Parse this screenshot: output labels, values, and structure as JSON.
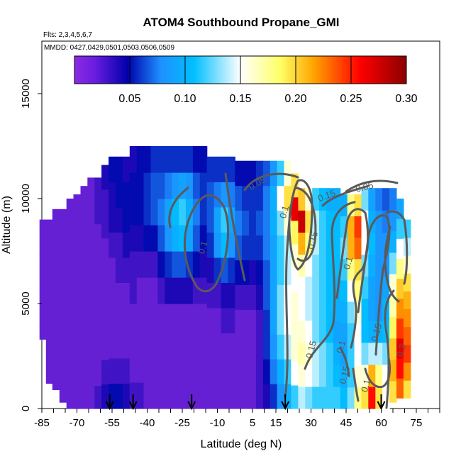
{
  "chart_data": {
    "type": "heatmap",
    "title": "ATOM4 Southbound Propane_GMI",
    "flights_note": "Flts: 2,3,4,5,6,7",
    "dates_note": "MMDD: 0427,0429,0501,0503,0506,0509",
    "xlabel": "Latitude (deg N)",
    "ylabel": "Altitude (m)",
    "xlim": [
      -85,
      85
    ],
    "ylim": [
      0,
      17500
    ],
    "x_tick_labels": [
      "-85",
      "-70",
      "-55",
      "-40",
      "-25",
      "-10",
      "5",
      "15",
      "30",
      "45",
      "60",
      "75"
    ],
    "y_tick_labels": [
      "0",
      "5000",
      "10000",
      "15000"
    ],
    "colorbar": {
      "range": [
        0,
        0.3
      ],
      "tick_labels": [
        "0.05",
        "0.10",
        "0.15",
        "0.20",
        "0.25",
        "0.30"
      ],
      "colors": [
        "#8a2be2",
        "#0000aa",
        "#1e90ff",
        "#00bfff",
        "#ffffff",
        "#ffff66",
        "#ffa500",
        "#ff0000",
        "#8b0000"
      ]
    },
    "contour_labels": [
      "0.05",
      "0.1",
      "0.15",
      "0.1",
      "0.05",
      "0.15",
      "0.1",
      "0.15",
      "0.15",
      "0.1",
      "0.1",
      "0.15",
      "0.2"
    ],
    "profile_arrow_latitudes": [
      -56,
      -46,
      -21,
      19,
      60
    ],
    "columns": [
      {
        "lat": -84.5,
        "top": 9000,
        "bottom": 3300,
        "values": [
          0.01,
          0.01,
          0.01,
          0.01,
          0.01,
          0.01,
          0.01,
          0.01,
          0.01,
          0.01
        ]
      },
      {
        "lat": -82,
        "top": 9000,
        "bottom": 1200,
        "values": [
          0.01,
          0.01,
          0.01,
          0.01,
          0.01,
          0.01,
          0.01,
          0.01,
          0.01,
          0.01
        ]
      },
      {
        "lat": -79,
        "top": 9500,
        "bottom": 900,
        "values": [
          0.01,
          0.01,
          0.01,
          0.01,
          0.01,
          0.01,
          0.01,
          0.01,
          0.01,
          0.01
        ]
      },
      {
        "lat": -76,
        "top": 9500,
        "bottom": 300,
        "values": [
          0.01,
          0.01,
          0.01,
          0.01,
          0.01,
          0.01,
          0.01,
          0.01,
          0.01,
          0.01
        ]
      },
      {
        "lat": -73,
        "top": 10000,
        "bottom": 0,
        "values": [
          0.01,
          0.01,
          0.01,
          0.01,
          0.01,
          0.01,
          0.01,
          0.01,
          0.01,
          0.01
        ]
      },
      {
        "lat": -70,
        "top": 10200,
        "bottom": 0,
        "values": [
          0.01,
          0.01,
          0.01,
          0.01,
          0.01,
          0.01,
          0.01,
          0.01,
          0.01,
          0.01
        ]
      },
      {
        "lat": -67,
        "top": 10600,
        "bottom": 0,
        "values": [
          0.01,
          0.01,
          0.01,
          0.01,
          0.01,
          0.01,
          0.01,
          0.01,
          0.01,
          0.01
        ]
      },
      {
        "lat": -64,
        "top": 11000,
        "bottom": 0,
        "values": [
          0.01,
          0.01,
          0.01,
          0.01,
          0.01,
          0.01,
          0.01,
          0.01,
          0.01,
          0.01
        ]
      },
      {
        "lat": -61,
        "top": 11000,
        "bottom": 0,
        "values": [
          0.02,
          0.01,
          0.01,
          0.01,
          0.01,
          0.01,
          0.01,
          0.01,
          0.02,
          0.02
        ]
      },
      {
        "lat": -58,
        "top": 11600,
        "bottom": 0,
        "values": [
          0.03,
          0.02,
          0.01,
          0.01,
          0.01,
          0.01,
          0.01,
          0.02,
          0.02,
          0.03
        ]
      },
      {
        "lat": -55,
        "top": 12000,
        "bottom": 0,
        "values": [
          0.04,
          0.02,
          0.01,
          0.01,
          0.01,
          0.01,
          0.02,
          0.03,
          0.03,
          0.04
        ]
      },
      {
        "lat": -52,
        "top": 12000,
        "bottom": 0,
        "values": [
          0.04,
          0.02,
          0.01,
          0.01,
          0.01,
          0.02,
          0.02,
          0.03,
          0.04,
          0.04
        ]
      },
      {
        "lat": -49,
        "top": 12000,
        "bottom": 0,
        "values": [
          0.03,
          0.02,
          0.01,
          0.01,
          0.01,
          0.02,
          0.03,
          0.04,
          0.04,
          0.03
        ]
      },
      {
        "lat": -46,
        "top": 12500,
        "bottom": 0,
        "values": [
          0.02,
          0.01,
          0.01,
          0.01,
          0.02,
          0.02,
          0.03,
          0.04,
          0.04,
          0.03
        ]
      },
      {
        "lat": -43,
        "top": 12500,
        "bottom": 0,
        "values": [
          0.02,
          0.01,
          0.01,
          0.01,
          0.01,
          0.02,
          0.03,
          0.04,
          0.04,
          0.04
        ]
      },
      {
        "lat": -40,
        "top": 12500,
        "bottom": 0,
        "values": [
          0.01,
          0.01,
          0.01,
          0.01,
          0.01,
          0.02,
          0.04,
          0.05,
          0.05,
          0.04
        ]
      },
      {
        "lat": -37,
        "top": 12500,
        "bottom": 0,
        "values": [
          0.01,
          0.01,
          0.01,
          0.01,
          0.01,
          0.02,
          0.04,
          0.06,
          0.06,
          0.05
        ]
      },
      {
        "lat": -34,
        "top": 12500,
        "bottom": 0,
        "values": [
          0.01,
          0.01,
          0.01,
          0.01,
          0.02,
          0.04,
          0.06,
          0.07,
          0.06,
          0.05
        ]
      },
      {
        "lat": -31,
        "top": 12500,
        "bottom": 0,
        "values": [
          0.01,
          0.01,
          0.01,
          0.01,
          0.03,
          0.05,
          0.08,
          0.09,
          0.07,
          0.05
        ]
      },
      {
        "lat": -28,
        "top": 12500,
        "bottom": 0,
        "values": [
          0.01,
          0.01,
          0.01,
          0.01,
          0.03,
          0.06,
          0.1,
          0.11,
          0.08,
          0.05
        ]
      },
      {
        "lat": -25,
        "top": 12500,
        "bottom": 0,
        "values": [
          0.01,
          0.01,
          0.01,
          0.01,
          0.03,
          0.06,
          0.11,
          0.12,
          0.09,
          0.05
        ]
      },
      {
        "lat": -22,
        "top": 12500,
        "bottom": 0,
        "values": [
          0.01,
          0.01,
          0.01,
          0.01,
          0.03,
          0.05,
          0.09,
          0.1,
          0.08,
          0.05
        ]
      },
      {
        "lat": -19,
        "top": 12500,
        "bottom": 0,
        "values": [
          0.01,
          0.01,
          0.01,
          0.01,
          0.02,
          0.04,
          0.06,
          0.07,
          0.06,
          0.04
        ]
      },
      {
        "lat": -16,
        "top": 12500,
        "bottom": 0,
        "values": [
          0.01,
          0.01,
          0.01,
          0.01,
          0.02,
          0.03,
          0.04,
          0.05,
          0.05,
          0.04
        ]
      },
      {
        "lat": -13,
        "top": 12000,
        "bottom": 0,
        "values": [
          0.01,
          0.01,
          0.01,
          0.01,
          0.02,
          0.03,
          0.05,
          0.06,
          0.06,
          0.05
        ]
      },
      {
        "lat": -10,
        "top": 12000,
        "bottom": 0,
        "values": [
          0.01,
          0.01,
          0.01,
          0.01,
          0.02,
          0.05,
          0.08,
          0.09,
          0.07,
          0.05
        ]
      },
      {
        "lat": -7,
        "top": 12000,
        "bottom": 0,
        "values": [
          0.01,
          0.01,
          0.01,
          0.02,
          0.03,
          0.06,
          0.11,
          0.12,
          0.08,
          0.05
        ]
      },
      {
        "lat": -4,
        "top": 12000,
        "bottom": 0,
        "values": [
          0.01,
          0.01,
          0.01,
          0.02,
          0.03,
          0.05,
          0.08,
          0.09,
          0.07,
          0.05
        ]
      },
      {
        "lat": -1,
        "top": 11800,
        "bottom": 0,
        "values": [
          0.01,
          0.01,
          0.01,
          0.01,
          0.02,
          0.04,
          0.06,
          0.07,
          0.06,
          0.04
        ]
      },
      {
        "lat": 2,
        "top": 11800,
        "bottom": 0,
        "values": [
          0.01,
          0.01,
          0.01,
          0.01,
          0.02,
          0.04,
          0.05,
          0.06,
          0.05,
          0.04
        ]
      },
      {
        "lat": 5,
        "top": 11800,
        "bottom": 0,
        "values": [
          0.01,
          0.01,
          0.01,
          0.01,
          0.02,
          0.03,
          0.05,
          0.05,
          0.05,
          0.04
        ]
      },
      {
        "lat": 8,
        "top": 11800,
        "bottom": 0,
        "values": [
          0.02,
          0.02,
          0.02,
          0.02,
          0.03,
          0.04,
          0.05,
          0.06,
          0.05,
          0.05
        ]
      },
      {
        "lat": 11,
        "top": 11800,
        "bottom": 0,
        "values": [
          0.03,
          0.04,
          0.05,
          0.05,
          0.06,
          0.06,
          0.07,
          0.07,
          0.07,
          0.06
        ]
      },
      {
        "lat": 14,
        "top": 11800,
        "bottom": 0,
        "values": [
          0.05,
          0.07,
          0.08,
          0.09,
          0.09,
          0.09,
          0.09,
          0.1,
          0.1,
          0.08
        ]
      },
      {
        "lat": 17,
        "top": 11800,
        "bottom": 0,
        "values": [
          0.08,
          0.1,
          0.12,
          0.13,
          0.13,
          0.12,
          0.12,
          0.13,
          0.15,
          0.12
        ]
      },
      {
        "lat": 20,
        "top": 11800,
        "bottom": 0,
        "values": [
          0.1,
          0.12,
          0.14,
          0.15,
          0.15,
          0.14,
          0.14,
          0.16,
          0.2,
          0.16
        ]
      },
      {
        "lat": 23,
        "top": 11200,
        "bottom": 0,
        "values": [
          0.12,
          0.15,
          0.16,
          0.16,
          0.16,
          0.15,
          0.16,
          0.19,
          0.27,
          0.2
        ]
      },
      {
        "lat": 26,
        "top": 10500,
        "bottom": 0,
        "values": [
          0.14,
          0.16,
          0.17,
          0.16,
          0.15,
          0.15,
          0.17,
          0.22,
          0.28,
          0.21
        ]
      },
      {
        "lat": 29,
        "top": 10500,
        "bottom": 0,
        "values": [
          0.13,
          0.15,
          0.16,
          0.15,
          0.14,
          0.14,
          0.15,
          0.18,
          0.2,
          0.16
        ]
      },
      {
        "lat": 32,
        "top": 10500,
        "bottom": 0,
        "values": [
          0.12,
          0.14,
          0.14,
          0.13,
          0.13,
          0.13,
          0.13,
          0.14,
          0.14,
          0.12
        ]
      },
      {
        "lat": 35,
        "top": 10500,
        "bottom": 0,
        "values": [
          0.12,
          0.13,
          0.13,
          0.12,
          0.12,
          0.12,
          0.12,
          0.12,
          0.12,
          0.11
        ]
      },
      {
        "lat": 38,
        "top": 10500,
        "bottom": 0,
        "values": [
          0.12,
          0.12,
          0.12,
          0.11,
          0.11,
          0.11,
          0.11,
          0.11,
          0.11,
          0.1
        ]
      },
      {
        "lat": 41,
        "top": 10500,
        "bottom": 0,
        "values": [
          0.12,
          0.11,
          0.1,
          0.09,
          0.1,
          0.1,
          0.11,
          0.11,
          0.11,
          0.1
        ]
      },
      {
        "lat": 44,
        "top": 10200,
        "bottom": 0,
        "values": [
          0.11,
          0.1,
          0.09,
          0.09,
          0.1,
          0.11,
          0.12,
          0.13,
          0.12,
          0.1
        ]
      },
      {
        "lat": 47,
        "top": 10200,
        "bottom": 0,
        "values": [
          0.13,
          0.12,
          0.12,
          0.12,
          0.13,
          0.15,
          0.18,
          0.22,
          0.22,
          0.18
        ]
      },
      {
        "lat": 50,
        "top": 10200,
        "bottom": 0,
        "values": [
          0.18,
          0.16,
          0.15,
          0.15,
          0.16,
          0.18,
          0.2,
          0.24,
          0.25,
          0.2
        ]
      },
      {
        "lat": 53,
        "top": 10500,
        "bottom": 0,
        "values": [
          0.2,
          0.16,
          0.13,
          0.11,
          0.11,
          0.12,
          0.13,
          0.15,
          0.15,
          0.13
        ]
      },
      {
        "lat": 56,
        "top": 10500,
        "bottom": 0,
        "values": [
          0.26,
          0.22,
          0.14,
          0.1,
          0.09,
          0.09,
          0.1,
          0.11,
          0.1,
          0.09
        ]
      },
      {
        "lat": 59,
        "top": 10500,
        "bottom": 0,
        "values": [
          0.2,
          0.18,
          0.14,
          0.1,
          0.08,
          0.08,
          0.08,
          0.08,
          0.08,
          0.07
        ]
      },
      {
        "lat": 62,
        "top": 10500,
        "bottom": 0,
        "values": [
          0.15,
          0.15,
          0.13,
          0.11,
          0.1,
          0.09,
          0.08,
          0.08,
          0.07,
          0.06
        ]
      },
      {
        "lat": 65,
        "top": 10500,
        "bottom": 300,
        "values": [
          0.2,
          0.22,
          0.21,
          0.19,
          0.17,
          0.16,
          0.13,
          0.1,
          0.08,
          0.07
        ]
      },
      {
        "lat": 68,
        "top": 10000,
        "bottom": 500,
        "values": [
          0.24,
          0.26,
          0.27,
          0.25,
          0.23,
          0.21,
          0.18,
          0.15,
          0.12,
          0.09
        ]
      },
      {
        "lat": 71,
        "top": 9000,
        "bottom": 500,
        "values": [
          0.2,
          0.23,
          0.25,
          0.24,
          0.23,
          0.22,
          0.2,
          0.16,
          0.14,
          0.12
        ]
      }
    ]
  }
}
